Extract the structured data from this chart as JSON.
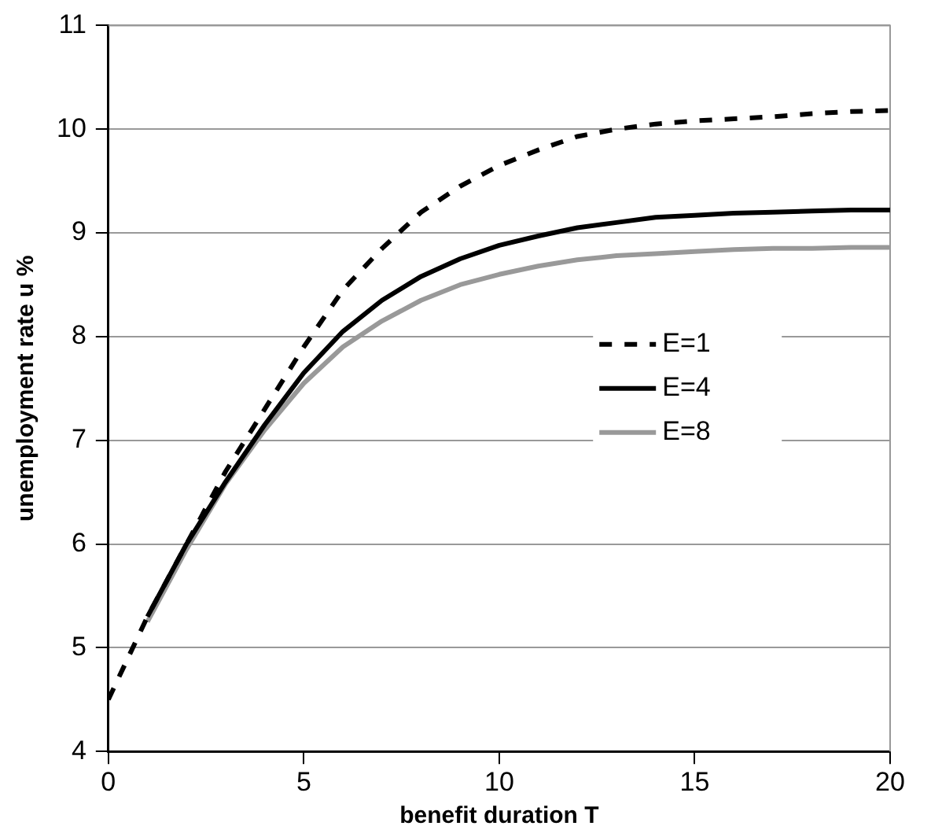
{
  "chart_data": {
    "type": "line",
    "xlabel": "benefit duration T",
    "ylabel": "unemployment rate u %",
    "xlim": [
      0,
      20
    ],
    "xticks": [
      0,
      5,
      10,
      15,
      20
    ],
    "ylim": [
      4,
      11
    ],
    "yticks": [
      4,
      5,
      6,
      7,
      8,
      9,
      10,
      11
    ],
    "grid": "y",
    "legend": "right",
    "marker": "none",
    "series": [
      {
        "name": "E=1",
        "color": "#000000",
        "line_style": "dashed",
        "x": [
          0,
          1,
          2,
          3,
          4,
          5,
          6,
          7,
          8,
          9,
          10,
          11,
          12,
          13,
          14,
          15,
          16,
          17,
          18,
          19,
          20
        ],
        "values": [
          4.5,
          5.3,
          6.0,
          6.7,
          7.3,
          7.9,
          8.45,
          8.85,
          9.2,
          9.45,
          9.65,
          9.8,
          9.93,
          10.0,
          10.05,
          10.08,
          10.1,
          10.12,
          10.15,
          10.17,
          10.18
        ]
      },
      {
        "name": "E=4",
        "color": "#000000",
        "line_style": "solid",
        "x": [
          1,
          2,
          3,
          4,
          5,
          6,
          7,
          8,
          9,
          10,
          11,
          12,
          13,
          14,
          15,
          16,
          17,
          18,
          19,
          20
        ],
        "values": [
          5.3,
          6.0,
          6.6,
          7.15,
          7.65,
          8.05,
          8.35,
          8.58,
          8.75,
          8.88,
          8.97,
          9.05,
          9.1,
          9.15,
          9.17,
          9.19,
          9.2,
          9.21,
          9.22,
          9.22
        ]
      },
      {
        "name": "E=8",
        "color": "#999999",
        "line_style": "solid",
        "x": [
          1,
          2,
          3,
          4,
          5,
          6,
          7,
          8,
          9,
          10,
          11,
          12,
          13,
          14,
          15,
          16,
          17,
          18,
          19,
          20
        ],
        "values": [
          5.25,
          5.95,
          6.58,
          7.1,
          7.55,
          7.9,
          8.15,
          8.35,
          8.5,
          8.6,
          8.68,
          8.74,
          8.78,
          8.8,
          8.82,
          8.84,
          8.85,
          8.85,
          8.86,
          8.86
        ]
      }
    ]
  }
}
